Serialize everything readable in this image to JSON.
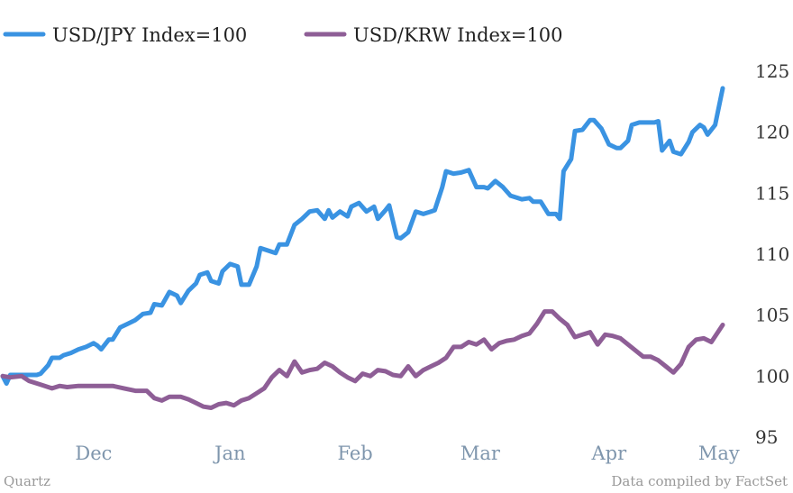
{
  "chart_data": {
    "type": "line",
    "ylim": [
      95,
      127
    ],
    "yticks": [
      95,
      100,
      105,
      110,
      115,
      120,
      125
    ],
    "xticks": [
      "Dec",
      "Jan",
      "Feb",
      "Mar",
      "Apr",
      "May"
    ],
    "x_range": [
      "2012-11-15",
      "2013-05-24"
    ],
    "xtick_dates": [
      "2012-12-09",
      "2013-01-14",
      "2013-02-16",
      "2013-03-21",
      "2013-04-24",
      "2013-05-23"
    ],
    "legend_position": "top-left",
    "grid": false,
    "series": [
      {
        "name": "USD/JPY Index=100",
        "color": "#3a93e2",
        "points": [
          [
            "2012-11-15",
            100.0
          ],
          [
            "2012-11-16",
            99.4
          ],
          [
            "2012-11-17",
            100.1
          ],
          [
            "2012-11-20",
            100.1
          ],
          [
            "2012-11-22",
            100.1
          ],
          [
            "2012-11-24",
            100.1
          ],
          [
            "2012-11-25",
            100.2
          ],
          [
            "2012-11-27",
            100.9
          ],
          [
            "2012-11-28",
            101.5
          ],
          [
            "2012-11-30",
            101.5
          ],
          [
            "2012-12-01",
            101.7
          ],
          [
            "2012-12-03",
            101.9
          ],
          [
            "2012-12-05",
            102.2
          ],
          [
            "2012-12-07",
            102.4
          ],
          [
            "2012-12-09",
            102.7
          ],
          [
            "2012-12-10",
            102.5
          ],
          [
            "2012-12-11",
            102.2
          ],
          [
            "2012-12-13",
            103.0
          ],
          [
            "2012-12-14",
            103.0
          ],
          [
            "2012-12-16",
            104.0
          ],
          [
            "2012-12-18",
            104.3
          ],
          [
            "2012-12-20",
            104.6
          ],
          [
            "2012-12-22",
            105.1
          ],
          [
            "2012-12-24",
            105.2
          ],
          [
            "2012-12-25",
            105.9
          ],
          [
            "2012-12-27",
            105.8
          ],
          [
            "2012-12-29",
            106.9
          ],
          [
            "2012-12-31",
            106.6
          ],
          [
            "2013-01-01",
            106.0
          ],
          [
            "2013-01-03",
            107.0
          ],
          [
            "2013-01-05",
            107.6
          ],
          [
            "2013-01-06",
            108.3
          ],
          [
            "2013-01-08",
            108.5
          ],
          [
            "2013-01-09",
            107.8
          ],
          [
            "2013-01-11",
            107.6
          ],
          [
            "2013-01-12",
            108.6
          ],
          [
            "2013-01-14",
            109.2
          ],
          [
            "2013-01-16",
            109.0
          ],
          [
            "2013-01-17",
            107.5
          ],
          [
            "2013-01-19",
            107.5
          ],
          [
            "2013-01-21",
            109.0
          ],
          [
            "2013-01-22",
            110.5
          ],
          [
            "2013-01-24",
            110.3
          ],
          [
            "2013-01-26",
            110.1
          ],
          [
            "2013-01-27",
            110.8
          ],
          [
            "2013-01-29",
            110.8
          ],
          [
            "2013-01-31",
            112.4
          ],
          [
            "2013-02-02",
            112.9
          ],
          [
            "2013-02-04",
            113.5
          ],
          [
            "2013-02-06",
            113.6
          ],
          [
            "2013-02-08",
            112.9
          ],
          [
            "2013-02-09",
            113.6
          ],
          [
            "2013-02-10",
            113.0
          ],
          [
            "2013-02-12",
            113.5
          ],
          [
            "2013-02-14",
            113.1
          ],
          [
            "2013-02-15",
            113.9
          ],
          [
            "2013-02-17",
            114.2
          ],
          [
            "2013-02-19",
            113.5
          ],
          [
            "2013-02-21",
            113.9
          ],
          [
            "2013-02-22",
            112.9
          ],
          [
            "2013-02-24",
            113.6
          ],
          [
            "2013-02-25",
            114.0
          ],
          [
            "2013-02-27",
            111.4
          ],
          [
            "2013-02-28",
            111.3
          ],
          [
            "2013-03-02",
            111.8
          ],
          [
            "2013-03-04",
            113.5
          ],
          [
            "2013-03-06",
            113.3
          ],
          [
            "2013-03-08",
            113.5
          ],
          [
            "2013-03-09",
            113.6
          ],
          [
            "2013-03-11",
            115.5
          ],
          [
            "2013-03-12",
            116.8
          ],
          [
            "2013-03-14",
            116.6
          ],
          [
            "2013-03-16",
            116.7
          ],
          [
            "2013-03-18",
            116.9
          ],
          [
            "2013-03-20",
            115.5
          ],
          [
            "2013-03-22",
            115.5
          ],
          [
            "2013-03-23",
            115.4
          ],
          [
            "2013-03-25",
            116.0
          ],
          [
            "2013-03-27",
            115.5
          ],
          [
            "2013-03-29",
            114.8
          ],
          [
            "2013-03-31",
            114.6
          ],
          [
            "2013-04-01",
            114.5
          ],
          [
            "2013-04-03",
            114.6
          ],
          [
            "2013-04-04",
            114.3
          ],
          [
            "2013-04-06",
            114.3
          ],
          [
            "2013-04-08",
            113.3
          ],
          [
            "2013-04-10",
            113.3
          ],
          [
            "2013-04-11",
            112.9
          ],
          [
            "2013-04-12",
            116.8
          ],
          [
            "2013-04-14",
            117.8
          ],
          [
            "2013-04-15",
            120.1
          ],
          [
            "2013-04-17",
            120.2
          ],
          [
            "2013-04-19",
            121.0
          ],
          [
            "2013-04-20",
            121.0
          ],
          [
            "2013-04-22",
            120.3
          ],
          [
            "2013-04-24",
            119.0
          ],
          [
            "2013-04-26",
            118.7
          ],
          [
            "2013-04-27",
            118.7
          ],
          [
            "2013-04-29",
            119.3
          ],
          [
            "2013-04-30",
            120.6
          ],
          [
            "2013-05-02",
            120.8
          ],
          [
            "2013-05-04",
            120.8
          ],
          [
            "2013-05-06",
            120.8
          ],
          [
            "2013-05-07",
            120.9
          ],
          [
            "2013-05-08",
            118.5
          ],
          [
            "2013-05-10",
            119.3
          ],
          [
            "2013-05-11",
            118.4
          ],
          [
            "2013-05-13",
            118.2
          ],
          [
            "2013-05-15",
            119.2
          ],
          [
            "2013-05-16",
            120.0
          ],
          [
            "2013-05-18",
            120.6
          ],
          [
            "2013-05-19",
            120.4
          ],
          [
            "2013-05-20",
            119.8
          ],
          [
            "2013-05-22",
            120.6
          ],
          [
            "2013-05-24",
            123.6
          ]
        ]
      },
      {
        "name": "USD/KRW Index=100",
        "color": "#8e5e96",
        "points": [
          [
            "2012-11-15",
            100.0
          ],
          [
            "2012-11-17",
            99.9
          ],
          [
            "2012-11-20",
            100.0
          ],
          [
            "2012-11-22",
            99.6
          ],
          [
            "2012-11-25",
            99.3
          ],
          [
            "2012-11-28",
            99.0
          ],
          [
            "2012-11-30",
            99.2
          ],
          [
            "2012-12-02",
            99.1
          ],
          [
            "2012-12-05",
            99.2
          ],
          [
            "2012-12-08",
            99.2
          ],
          [
            "2012-12-11",
            99.2
          ],
          [
            "2012-12-14",
            99.2
          ],
          [
            "2012-12-17",
            99.0
          ],
          [
            "2012-12-20",
            98.8
          ],
          [
            "2012-12-23",
            98.8
          ],
          [
            "2012-12-25",
            98.2
          ],
          [
            "2012-12-27",
            98.0
          ],
          [
            "2012-12-29",
            98.3
          ],
          [
            "2013-01-01",
            98.3
          ],
          [
            "2013-01-03",
            98.1
          ],
          [
            "2013-01-05",
            97.8
          ],
          [
            "2013-01-07",
            97.5
          ],
          [
            "2013-01-09",
            97.4
          ],
          [
            "2013-01-11",
            97.7
          ],
          [
            "2013-01-13",
            97.8
          ],
          [
            "2013-01-15",
            97.6
          ],
          [
            "2013-01-17",
            98.0
          ],
          [
            "2013-01-19",
            98.2
          ],
          [
            "2013-01-21",
            98.6
          ],
          [
            "2013-01-23",
            99.0
          ],
          [
            "2013-01-25",
            99.9
          ],
          [
            "2013-01-27",
            100.5
          ],
          [
            "2013-01-29",
            100.0
          ],
          [
            "2013-01-31",
            101.2
          ],
          [
            "2013-02-02",
            100.3
          ],
          [
            "2013-02-04",
            100.5
          ],
          [
            "2013-02-06",
            100.6
          ],
          [
            "2013-02-08",
            101.1
          ],
          [
            "2013-02-10",
            100.8
          ],
          [
            "2013-02-12",
            100.3
          ],
          [
            "2013-02-14",
            99.9
          ],
          [
            "2013-02-16",
            99.6
          ],
          [
            "2013-02-18",
            100.2
          ],
          [
            "2013-02-20",
            100.0
          ],
          [
            "2013-02-22",
            100.5
          ],
          [
            "2013-02-24",
            100.4
          ],
          [
            "2013-02-26",
            100.1
          ],
          [
            "2013-02-28",
            100.0
          ],
          [
            "2013-03-02",
            100.8
          ],
          [
            "2013-03-04",
            100.0
          ],
          [
            "2013-03-06",
            100.5
          ],
          [
            "2013-03-08",
            100.8
          ],
          [
            "2013-03-10",
            101.1
          ],
          [
            "2013-03-12",
            101.5
          ],
          [
            "2013-03-14",
            102.4
          ],
          [
            "2013-03-16",
            102.4
          ],
          [
            "2013-03-18",
            102.8
          ],
          [
            "2013-03-20",
            102.6
          ],
          [
            "2013-03-22",
            103.0
          ],
          [
            "2013-03-24",
            102.2
          ],
          [
            "2013-03-26",
            102.7
          ],
          [
            "2013-03-28",
            102.9
          ],
          [
            "2013-03-30",
            103.0
          ],
          [
            "2013-04-01",
            103.3
          ],
          [
            "2013-04-03",
            103.5
          ],
          [
            "2013-04-05",
            104.3
          ],
          [
            "2013-04-07",
            105.3
          ],
          [
            "2013-04-09",
            105.3
          ],
          [
            "2013-04-11",
            104.7
          ],
          [
            "2013-04-13",
            104.2
          ],
          [
            "2013-04-15",
            103.2
          ],
          [
            "2013-04-17",
            103.4
          ],
          [
            "2013-04-19",
            103.6
          ],
          [
            "2013-04-21",
            102.6
          ],
          [
            "2013-04-23",
            103.4
          ],
          [
            "2013-04-25",
            103.3
          ],
          [
            "2013-04-27",
            103.1
          ],
          [
            "2013-04-29",
            102.6
          ],
          [
            "2013-05-01",
            102.1
          ],
          [
            "2013-05-03",
            101.6
          ],
          [
            "2013-05-05",
            101.6
          ],
          [
            "2013-05-07",
            101.3
          ],
          [
            "2013-05-09",
            100.8
          ],
          [
            "2013-05-11",
            100.3
          ],
          [
            "2013-05-13",
            101.0
          ],
          [
            "2013-05-15",
            102.4
          ],
          [
            "2013-05-17",
            103.0
          ],
          [
            "2013-05-19",
            103.1
          ],
          [
            "2013-05-21",
            102.8
          ],
          [
            "2013-05-24",
            104.2
          ]
        ]
      }
    ]
  },
  "footer": {
    "source_left": "Quartz",
    "source_right": "Data compiled by FactSet"
  }
}
